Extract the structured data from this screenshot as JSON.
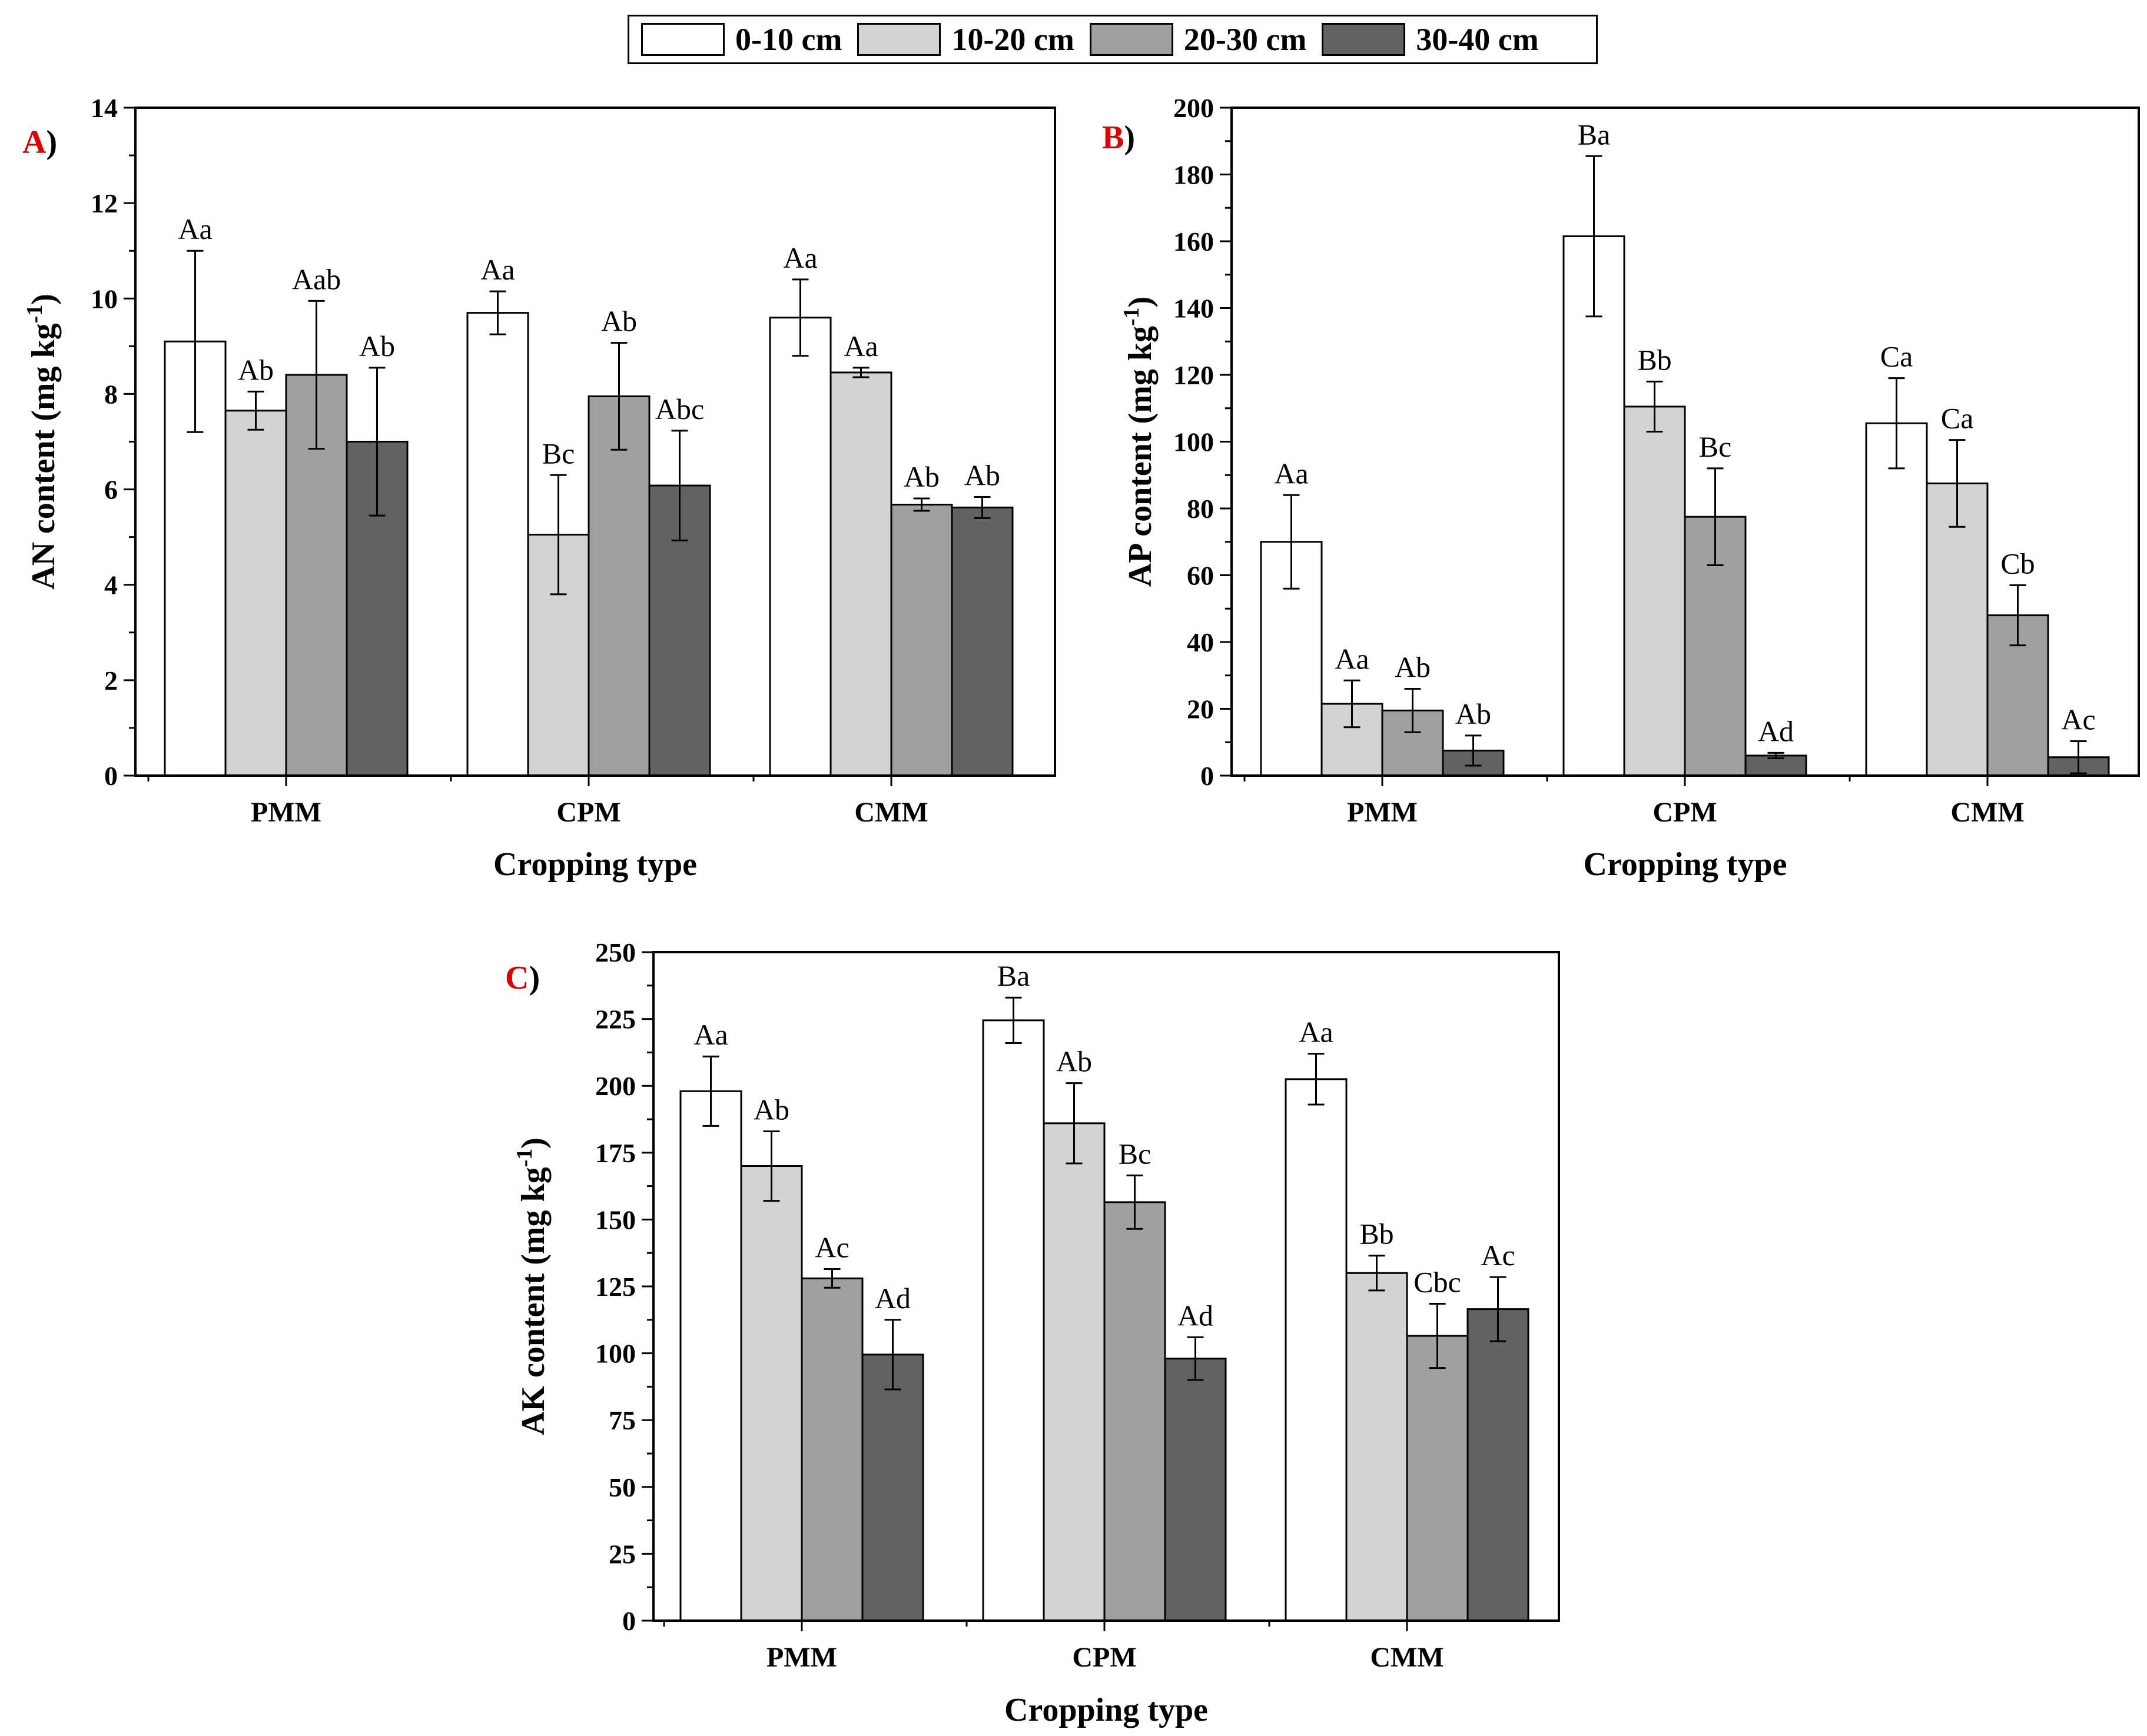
{
  "legend": {
    "items": [
      {
        "label": "0-10 cm",
        "color": "#ffffff"
      },
      {
        "label": "10-20 cm",
        "color": "#d3d3d3"
      },
      {
        "label": "20-30 cm",
        "color": "#a0a0a0"
      },
      {
        "label": "30-40 cm",
        "color": "#626262"
      }
    ]
  },
  "colors": {
    "panel_letter": "#e00000",
    "axis": "#000000",
    "bar_stroke": "#000000"
  },
  "chart_data": [
    {
      "type": "bar",
      "panel_letter": "A",
      "panel_suffix": ")",
      "ylabel_main": "AN content (mg kg",
      "ylabel_sup": "-1",
      "ylabel_close": ")",
      "xlabel": "Cropping type",
      "categories": [
        "PMM",
        "CPM",
        "CMM"
      ],
      "ylim": [
        0,
        14
      ],
      "yticks": [
        0,
        2,
        4,
        6,
        8,
        10,
        12,
        14
      ],
      "series": [
        {
          "name": "0-10 cm",
          "values": [
            9.1,
            9.7,
            9.6
          ],
          "errors": [
            1.9,
            0.45,
            0.8
          ],
          "labels": [
            "Aa",
            "Aa",
            "Aa"
          ]
        },
        {
          "name": "10-20 cm",
          "values": [
            7.65,
            5.05,
            8.45
          ],
          "errors": [
            0.4,
            1.25,
            0.1
          ],
          "labels": [
            "Ab",
            "Bc",
            "Aa"
          ]
        },
        {
          "name": "20-30 cm",
          "values": [
            8.4,
            7.95,
            5.68
          ],
          "errors": [
            1.55,
            1.12,
            0.13
          ],
          "labels": [
            "Aab",
            "Ab",
            "Ab"
          ]
        },
        {
          "name": "30-40 cm",
          "values": [
            7.0,
            6.08,
            5.62
          ],
          "errors": [
            1.55,
            1.15,
            0.22
          ],
          "labels": [
            "Ab",
            "Abc",
            "Ab"
          ]
        }
      ]
    },
    {
      "type": "bar",
      "panel_letter": "B",
      "panel_suffix": ")",
      "ylabel_main": "AP content (mg kg",
      "ylabel_sup": "-1",
      "ylabel_close": ")",
      "xlabel": "Cropping type",
      "categories": [
        "PMM",
        "CPM",
        "CMM"
      ],
      "ylim": [
        0,
        200
      ],
      "yticks": [
        0,
        20,
        40,
        60,
        80,
        100,
        120,
        140,
        160,
        180,
        200
      ],
      "series": [
        {
          "name": "0-10 cm",
          "values": [
            70,
            161.5,
            105.5
          ],
          "errors": [
            14,
            24,
            13.5
          ],
          "labels": [
            "Aa",
            "Ba",
            "Ca"
          ]
        },
        {
          "name": "10-20 cm",
          "values": [
            21.5,
            110.5,
            87.5
          ],
          "errors": [
            7,
            7.5,
            13
          ],
          "labels": [
            "Aa",
            "Bb",
            "Ca"
          ]
        },
        {
          "name": "20-30 cm",
          "values": [
            19.5,
            77.5,
            48
          ],
          "errors": [
            6.5,
            14.5,
            9
          ],
          "labels": [
            "Ab",
            "Bc",
            "Cb"
          ]
        },
        {
          "name": "30-40 cm",
          "values": [
            7.5,
            6,
            5.5
          ],
          "errors": [
            4.5,
            0.8,
            4.8
          ],
          "labels": [
            "Ab",
            "Ad",
            "Ac"
          ]
        }
      ]
    },
    {
      "type": "bar",
      "panel_letter": "C",
      "panel_suffix": ")",
      "ylabel_main": "AK content (mg kg",
      "ylabel_sup": "-1",
      "ylabel_close": ")",
      "xlabel": "Cropping type",
      "categories": [
        "PMM",
        "CPM",
        "CMM"
      ],
      "ylim": [
        0,
        250
      ],
      "yticks": [
        0,
        25,
        50,
        75,
        100,
        125,
        150,
        175,
        200,
        225,
        250
      ],
      "series": [
        {
          "name": "0-10 cm",
          "values": [
            198,
            224.5,
            202.5
          ],
          "errors": [
            13,
            8.5,
            9.5
          ],
          "labels": [
            "Aa",
            "Ba",
            "Aa"
          ]
        },
        {
          "name": "10-20 cm",
          "values": [
            170,
            186,
            130
          ],
          "errors": [
            13,
            15,
            6.5
          ],
          "labels": [
            "Ab",
            "Ab",
            "Bb"
          ]
        },
        {
          "name": "20-30 cm",
          "values": [
            128,
            156.5,
            106.5
          ],
          "errors": [
            3.5,
            10,
            12
          ],
          "labels": [
            "Ac",
            "Bc",
            "Cbc"
          ]
        },
        {
          "name": "30-40 cm",
          "values": [
            99.5,
            98,
            116.5
          ],
          "errors": [
            13,
            8,
            12
          ],
          "labels": [
            "Ad",
            "Ad",
            "Ac"
          ]
        }
      ]
    }
  ]
}
